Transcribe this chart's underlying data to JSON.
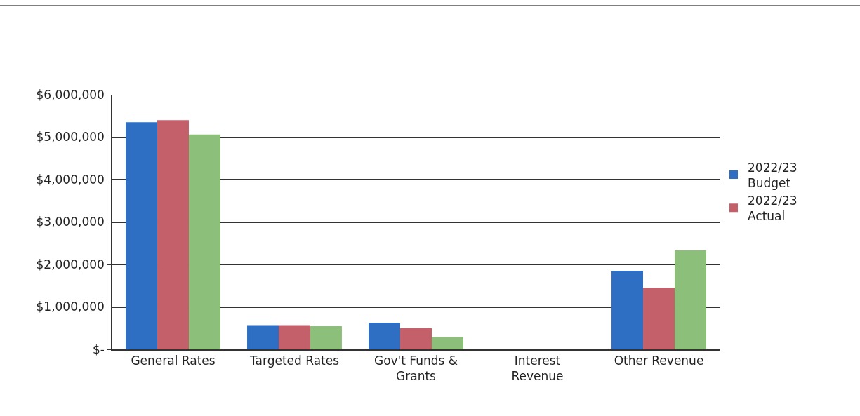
{
  "chart_data": {
    "type": "bar",
    "categories": [
      "General Rates",
      "Targeted Rates",
      "Gov't Funds & Grants",
      "Interest Revenue",
      "Other Revenue"
    ],
    "series": [
      {
        "name": "2022/23 Budget",
        "color": "#2e6fc4",
        "values": [
          5350000,
          570000,
          630000,
          0,
          1850000
        ]
      },
      {
        "name": "2022/23 Actual",
        "color": "#c4606a",
        "values": [
          5400000,
          570000,
          500000,
          0,
          1450000
        ]
      },
      {
        "color": "#8cc07a",
        "values": [
          5060000,
          550000,
          290000,
          0,
          2330000
        ]
      }
    ],
    "ylim": [
      0,
      6000000
    ],
    "yticks": [
      {
        "value": 0,
        "label": "$-"
      },
      {
        "value": 1000000,
        "label": "$1,000,000"
      },
      {
        "value": 2000000,
        "label": "$2,000,000"
      },
      {
        "value": 3000000,
        "label": "$3,000,000"
      },
      {
        "value": 4000000,
        "label": "$4,000,000"
      },
      {
        "value": 5000000,
        "label": "$5,000,000"
      },
      {
        "value": 6000000,
        "label": "$6,000,000"
      }
    ],
    "grid": "y",
    "legend": "right"
  }
}
